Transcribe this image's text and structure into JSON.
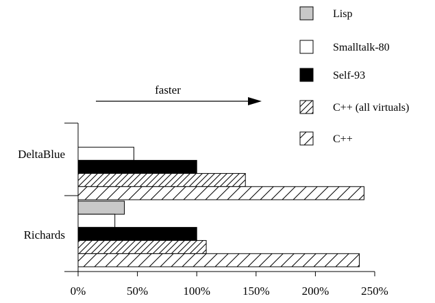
{
  "chart_data": {
    "type": "bar",
    "orientation": "horizontal",
    "title": "",
    "xlabel": "",
    "ylabel": "",
    "categories": [
      "DeltaBlue",
      "Richards"
    ],
    "xlim": [
      0,
      250
    ],
    "xticks": [
      0,
      50,
      100,
      150,
      200,
      250
    ],
    "xtick_labels": [
      "0%",
      "50%",
      "100%",
      "150%",
      "200%",
      "250%"
    ],
    "grid": false,
    "legend_position": "top-right",
    "annotation": {
      "text": "faster",
      "arrow": "right"
    },
    "series": [
      {
        "name": "Lisp",
        "fill": "#c8c8c8",
        "pattern": "solid",
        "values": [
          null,
          39
        ]
      },
      {
        "name": "Smalltalk-80",
        "fill": "#ffffff",
        "pattern": "solid",
        "values": [
          47,
          31
        ]
      },
      {
        "name": "Self-93",
        "fill": "#000000",
        "pattern": "solid",
        "values": [
          100,
          100
        ]
      },
      {
        "name": "C++ (all virtuals)",
        "fill": "#ffffff",
        "pattern": "dense-hatch",
        "values": [
          141,
          108
        ]
      },
      {
        "name": "C++",
        "fill": "#ffffff",
        "pattern": "sparse-hatch",
        "values": [
          241,
          237
        ]
      }
    ]
  }
}
